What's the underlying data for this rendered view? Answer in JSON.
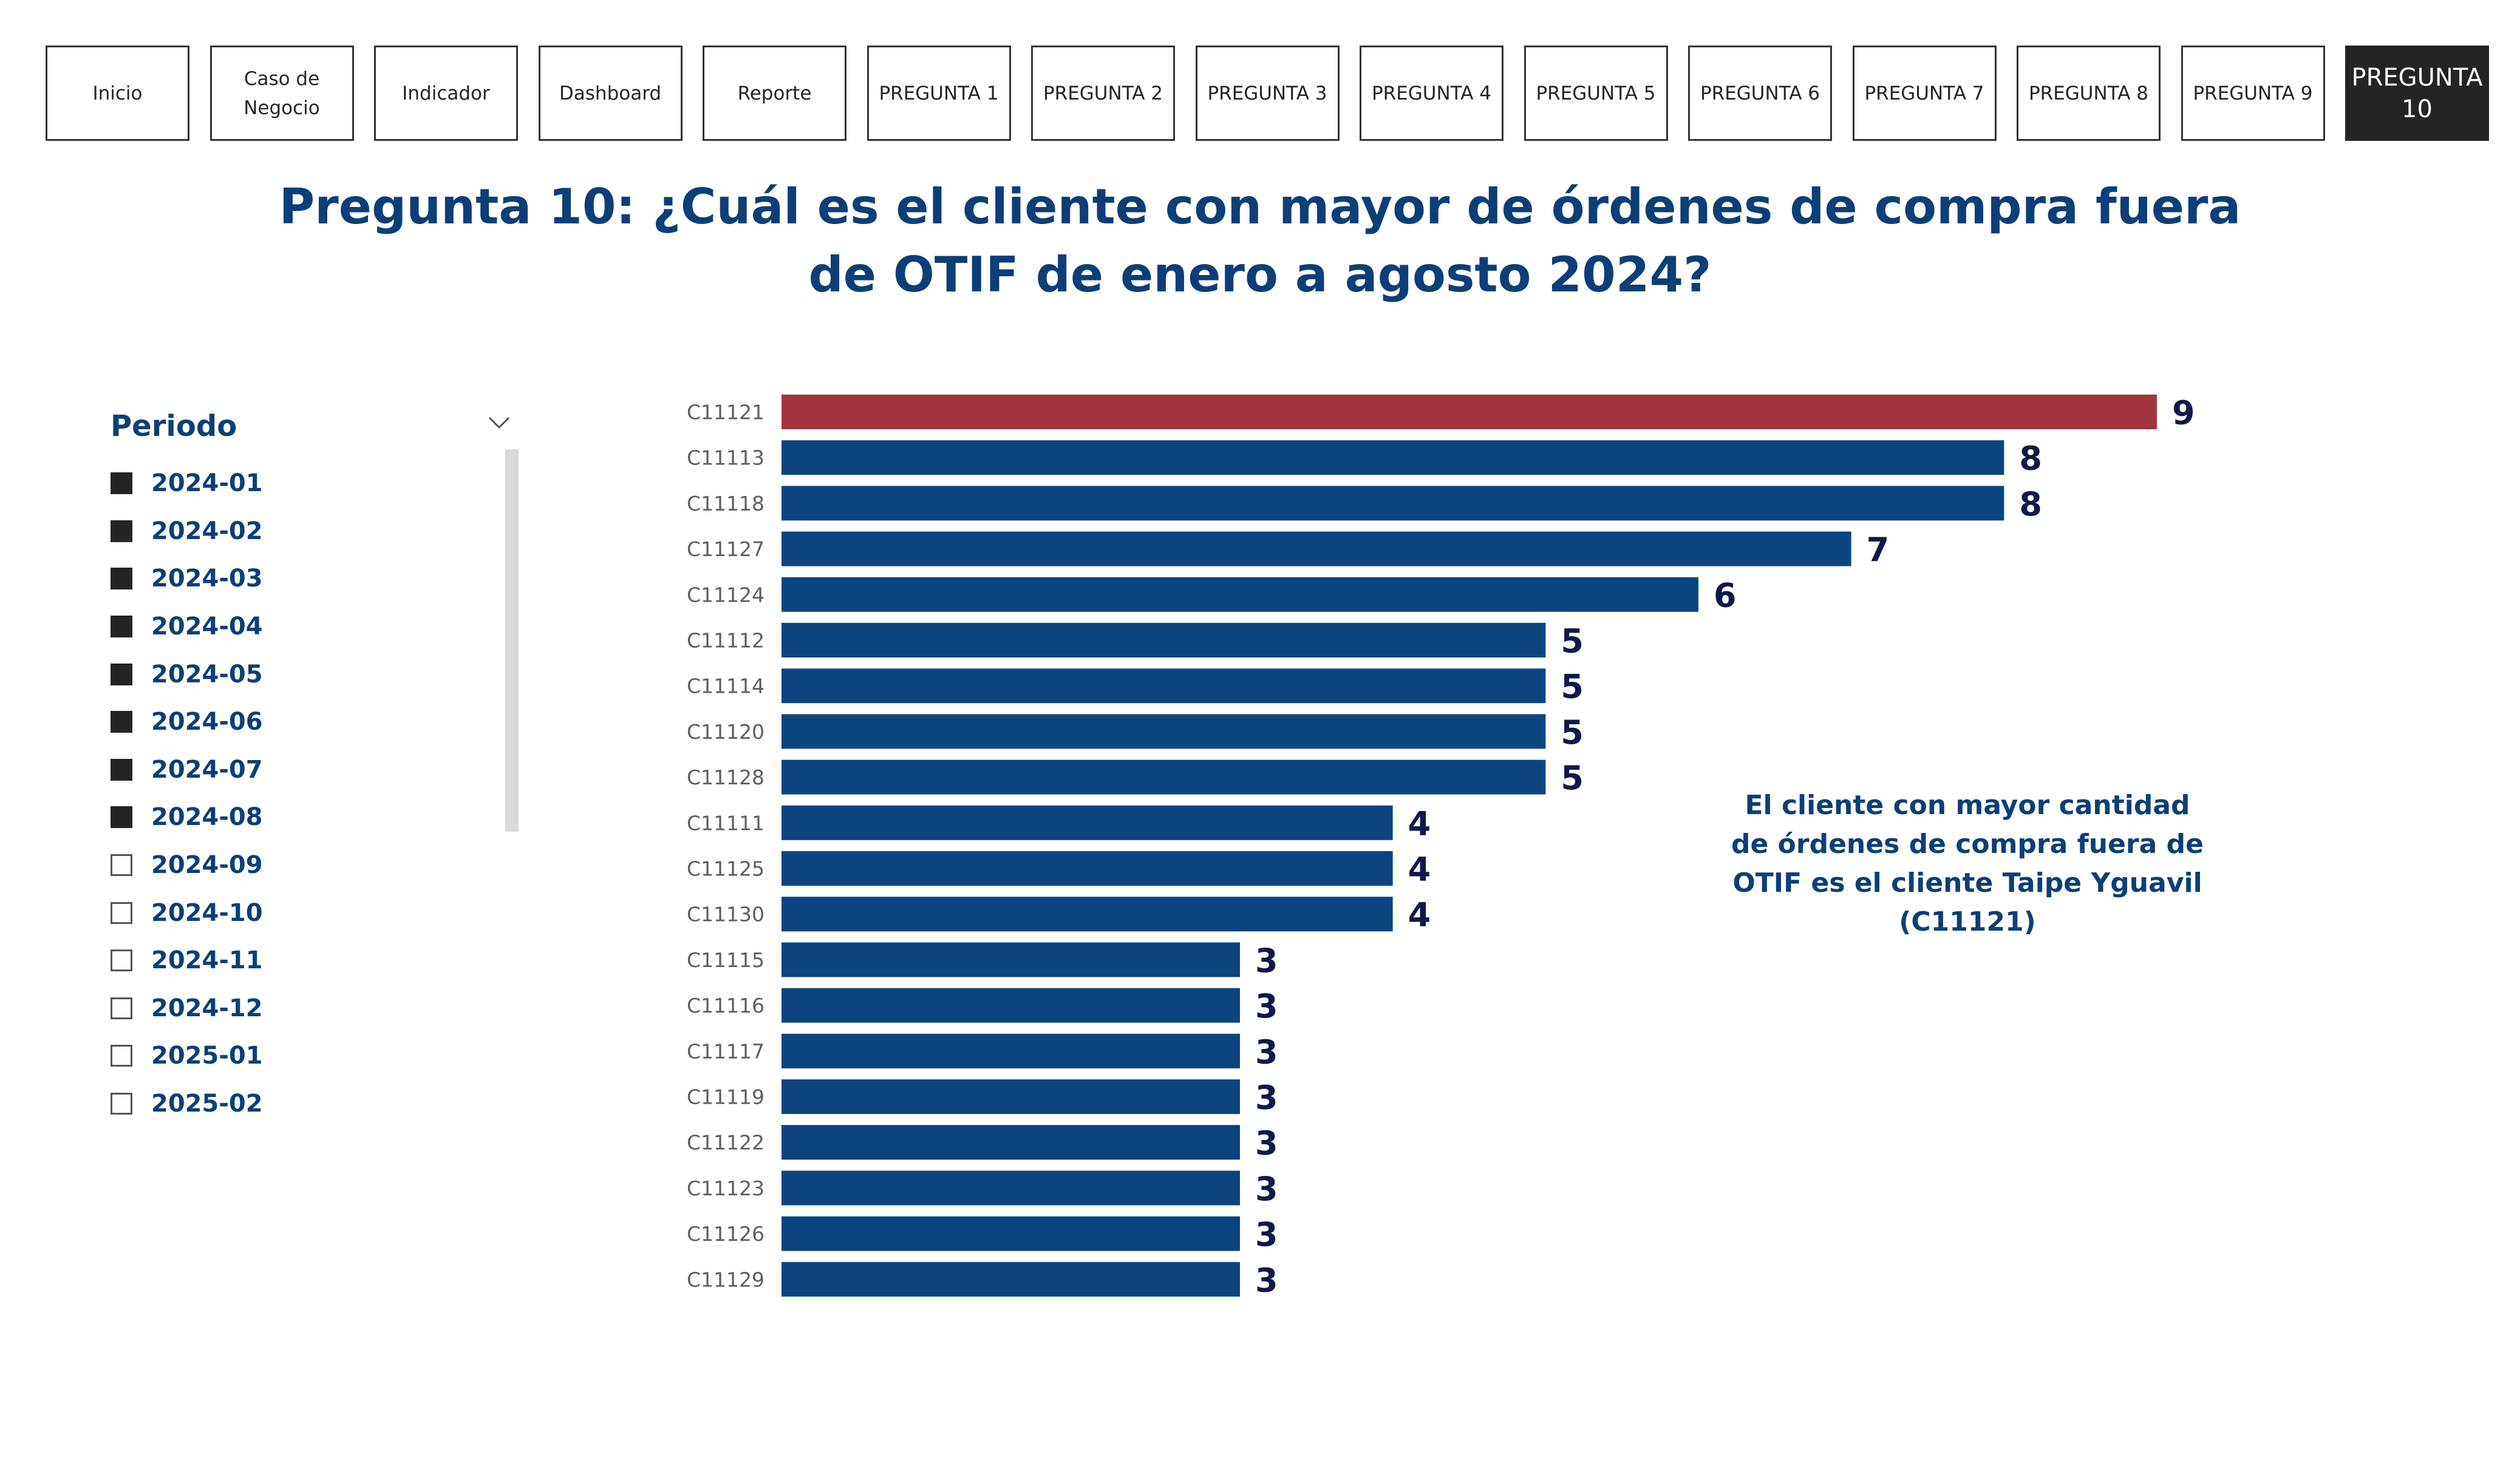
{
  "nav": {
    "buttons": [
      {
        "label": "Inicio",
        "active": false
      },
      {
        "label": "Caso de\nNegocio",
        "active": false
      },
      {
        "label": "Indicador",
        "active": false
      },
      {
        "label": "Dashboard",
        "active": false
      },
      {
        "label": "Reporte",
        "active": false
      },
      {
        "label": "PREGUNTA 1",
        "active": false
      },
      {
        "label": "PREGUNTA 2",
        "active": false
      },
      {
        "label": "PREGUNTA 3",
        "active": false
      },
      {
        "label": "PREGUNTA 4",
        "active": false
      },
      {
        "label": "PREGUNTA 5",
        "active": false
      },
      {
        "label": "PREGUNTA 6",
        "active": false
      },
      {
        "label": "PREGUNTA 7",
        "active": false
      },
      {
        "label": "PREGUNTA 8",
        "active": false
      },
      {
        "label": "PREGUNTA 9",
        "active": false
      },
      {
        "label": "PREGUNTA\n10",
        "active": true
      }
    ]
  },
  "page": {
    "title": "Pregunta 10: ¿Cuál es el cliente con mayor de órdenes de compra fuera de OTIF de enero a agosto 2024?"
  },
  "slicer": {
    "title": "Periodo",
    "items": [
      {
        "label": "2024-01",
        "checked": true
      },
      {
        "label": "2024-02",
        "checked": true
      },
      {
        "label": "2024-03",
        "checked": true
      },
      {
        "label": "2024-04",
        "checked": true
      },
      {
        "label": "2024-05",
        "checked": true
      },
      {
        "label": "2024-06",
        "checked": true
      },
      {
        "label": "2024-07",
        "checked": true
      },
      {
        "label": "2024-08",
        "checked": true
      },
      {
        "label": "2024-09",
        "checked": false
      },
      {
        "label": "2024-10",
        "checked": false
      },
      {
        "label": "2024-11",
        "checked": false
      },
      {
        "label": "2024-12",
        "checked": false
      },
      {
        "label": "2025-01",
        "checked": false
      },
      {
        "label": "2025-02",
        "checked": false
      }
    ]
  },
  "note": {
    "text": "El cliente con mayor cantidad de órdenes de compra fuera de OTIF es el cliente Taipe Yguavil (C11121)"
  },
  "colors": {
    "title": "#0c3f77",
    "bar": "#0c4480",
    "highlight_bar": "#a3333d",
    "value_label": "#10184a",
    "category_label": "#605e5c"
  },
  "chart_data": {
    "type": "bar",
    "orientation": "horizontal",
    "categories": [
      "C11121",
      "C11113",
      "C11118",
      "C11127",
      "C11124",
      "C11112",
      "C11114",
      "C11120",
      "C11128",
      "C11111",
      "C11125",
      "C11130",
      "C11115",
      "C11116",
      "C11117",
      "C11119",
      "C11122",
      "C11123",
      "C11126",
      "C11129"
    ],
    "values": [
      9,
      8,
      8,
      7,
      6,
      5,
      5,
      5,
      5,
      4,
      4,
      4,
      3,
      3,
      3,
      3,
      3,
      3,
      3,
      3
    ],
    "highlight": "C11121",
    "xlim": [
      0,
      9
    ],
    "grid": false,
    "data_labels": true
  }
}
